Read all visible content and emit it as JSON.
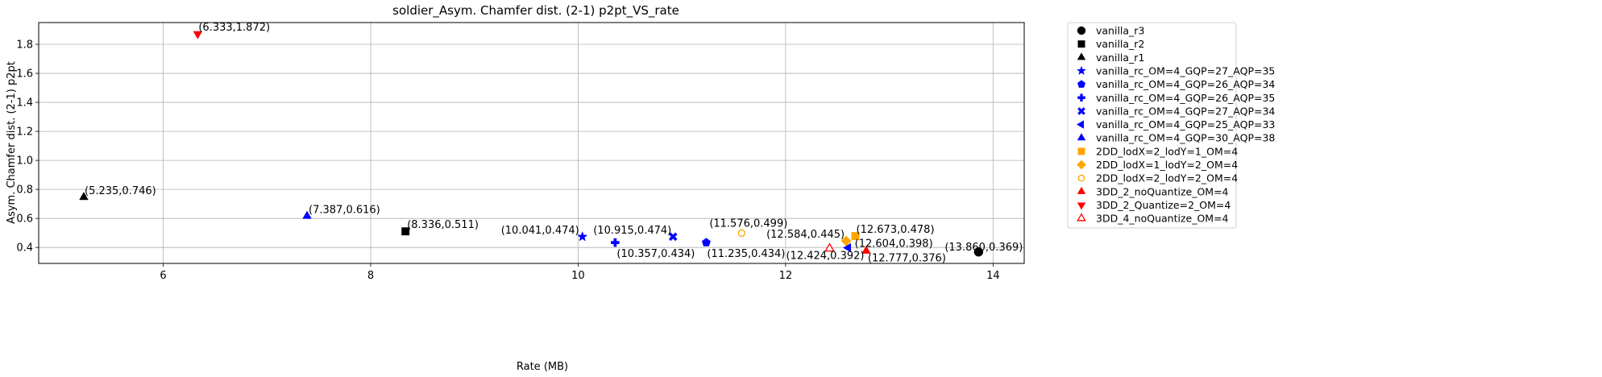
{
  "chart_data": {
    "type": "scatter",
    "title": "soldier_Asym. Chamfer dist. (2-1) p2pt_VS_rate",
    "xlabel": "Rate (MB)",
    "ylabel": "Asym. Chamfer dist. (2-1) p2pt",
    "xlim": [
      4.8,
      14.3
    ],
    "ylim": [
      0.29,
      1.95
    ],
    "xticks": [
      6,
      8,
      10,
      12,
      14
    ],
    "yticks": [
      0.4,
      0.6,
      0.8,
      1.0,
      1.2,
      1.4,
      1.6,
      1.8
    ],
    "xtick_labels": [
      "6",
      "8",
      "10",
      "12",
      "14"
    ],
    "ytick_labels": [
      "0.4",
      "0.6",
      "0.8",
      "1.0",
      "1.2",
      "1.4",
      "1.6",
      "1.8"
    ],
    "grid": true,
    "legend_position": "outside-right",
    "series": [
      {
        "name": "vanilla_r3",
        "marker": "circle",
        "color": "#000000",
        "points": [
          {
            "x": 13.86,
            "y": 0.369,
            "label": "(13.860,0.369)"
          }
        ]
      },
      {
        "name": "vanilla_r2",
        "marker": "square",
        "color": "#000000",
        "points": [
          {
            "x": 8.336,
            "y": 0.511,
            "label": "(8.336,0.511)"
          }
        ]
      },
      {
        "name": "vanilla_r1",
        "marker": "triangle-up",
        "color": "#000000",
        "points": [
          {
            "x": 5.235,
            "y": 0.746,
            "label": "(5.235,0.746)"
          }
        ]
      },
      {
        "name": "vanilla_rc_OM=4_GQP=27_AQP=35",
        "marker": "star",
        "color": "#0000ff",
        "points": [
          {
            "x": 10.041,
            "y": 0.474,
            "label": "(10.041,0.474)"
          }
        ]
      },
      {
        "name": "vanilla_rc_OM=4_GQP=26_AQP=34",
        "marker": "pentagon",
        "color": "#0000ff",
        "points": [
          {
            "x": 11.235,
            "y": 0.434,
            "label": "(11.235,0.434)"
          }
        ]
      },
      {
        "name": "vanilla_rc_OM=4_GQP=26_AQP=35",
        "marker": "plus",
        "color": "#0000ff",
        "points": [
          {
            "x": 10.357,
            "y": 0.434,
            "label": "(10.357,0.434)"
          }
        ]
      },
      {
        "name": "vanilla_rc_OM=4_GQP=27_AQP=34",
        "marker": "x-filled",
        "color": "#0000ff",
        "points": [
          {
            "x": 10.915,
            "y": 0.474,
            "label": "(10.915,0.474)"
          }
        ]
      },
      {
        "name": "vanilla_rc_OM=4_GQP=25_AQP=33",
        "marker": "triangle-left",
        "color": "#0000ff",
        "points": [
          {
            "x": 12.604,
            "y": 0.398,
            "label": "(12.604,0.398)"
          }
        ]
      },
      {
        "name": "vanilla_rc_OM=4_GQP=30_AQP=38",
        "marker": "triangle-up",
        "color": "#0000ff",
        "points": [
          {
            "x": 7.387,
            "y": 0.616,
            "label": "(7.387,0.616)"
          }
        ]
      },
      {
        "name": "2DD_lodX=2_lodY=1_OM=4",
        "marker": "square",
        "color": "#ffa500",
        "points": [
          {
            "x": 12.673,
            "y": 0.478,
            "label": "(12.673,0.478)"
          }
        ]
      },
      {
        "name": "2DD_lodX=1_lodY=2_OM=4",
        "marker": "diamond",
        "color": "#ffa500",
        "points": [
          {
            "x": 12.584,
            "y": 0.445,
            "label": "(12.584,0.445)"
          }
        ]
      },
      {
        "name": "2DD_lodX=2_lodY=2_OM=4",
        "marker": "octagon-hollow",
        "color": "#ffa500",
        "points": [
          {
            "x": 11.576,
            "y": 0.499,
            "label": "(11.576,0.499)"
          }
        ]
      },
      {
        "name": "3DD_2_noQuantize_OM=4",
        "marker": "triangle-up",
        "color": "#ff0000",
        "points": [
          {
            "x": 12.777,
            "y": 0.376,
            "label": "(12.777,0.376)"
          }
        ]
      },
      {
        "name": "3DD_2_Quantize=2_OM=4",
        "marker": "triangle-down",
        "color": "#ff0000",
        "points": [
          {
            "x": 6.333,
            "y": 1.872,
            "label": "(6.333,1.872)"
          }
        ]
      },
      {
        "name": "3DD_4_noQuantize_OM=4",
        "marker": "triangle-up-hollow",
        "color": "#ff0000",
        "points": [
          {
            "x": 12.424,
            "y": 0.392,
            "label": "(12.424,0.392)"
          }
        ]
      }
    ]
  }
}
